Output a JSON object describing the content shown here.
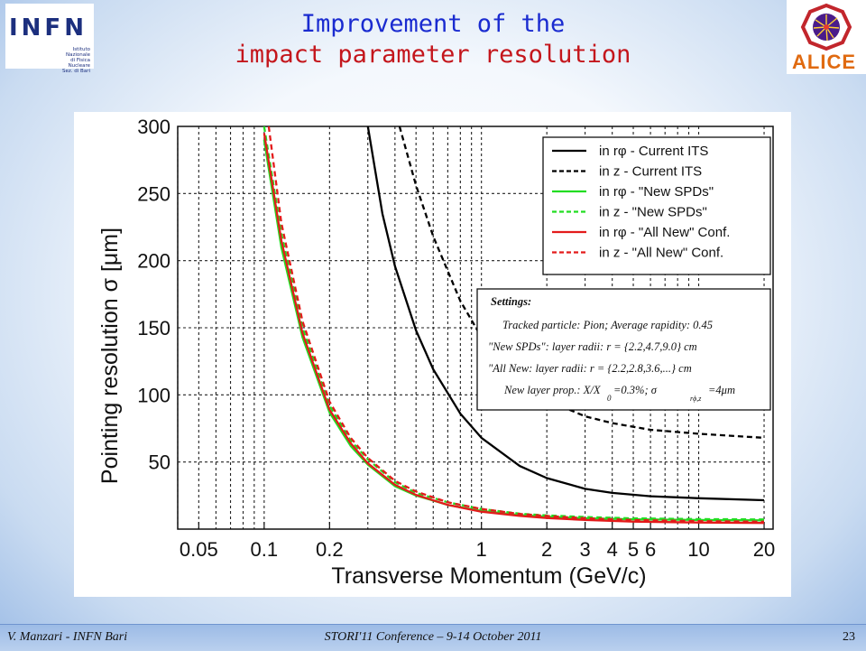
{
  "slide": {
    "title_line1": "Improvement of the",
    "title_line2": "impact parameter resolution",
    "infn_logo": {
      "letters": "INFN",
      "line1": "Istituto Nazionale",
      "line2": "di Fisica Nucleare",
      "line3": "Sez. di Bari"
    },
    "alice_logo": {
      "text": "ALICE"
    },
    "footer": {
      "left": "V. Manzari - INFN Bari",
      "center": "STORI'11 Conference – 9-14 October 2011",
      "page": "23"
    },
    "colors": {
      "title_blue": "#1a2bd0",
      "title_red": "#c4161c",
      "footer_bar": "#a9c5ea"
    }
  },
  "chart_data": {
    "type": "line",
    "xlabel": "Transverse Momentum (GeV/c)",
    "ylabel": "Pointing resolution σ [μm]",
    "x_scale": "log",
    "xlim": [
      0.04,
      22
    ],
    "ylim": [
      0,
      300
    ],
    "x_ticks": [
      {
        "v": 0.05,
        "label": "0.05"
      },
      {
        "v": 0.1,
        "label": "0.1"
      },
      {
        "v": 0.2,
        "label": "0.2"
      },
      {
        "v": 1,
        "label": "1"
      },
      {
        "v": 2,
        "label": "2"
      },
      {
        "v": 3,
        "label": "3"
      },
      {
        "v": 4,
        "label": "4"
      },
      {
        "v": 5,
        "label": "5"
      },
      {
        "v": 6,
        "label": "6"
      },
      {
        "v": 10,
        "label": "10"
      },
      {
        "v": 20,
        "label": "20"
      }
    ],
    "y_ticks": [
      50,
      100,
      150,
      200,
      250,
      300
    ],
    "grid": true,
    "legend_position": "top-right",
    "series": [
      {
        "name": "in rφ - Current ITS",
        "color": "#000000",
        "dash": "solid",
        "x": [
          0.3,
          0.35,
          0.4,
          0.5,
          0.6,
          0.8,
          1,
          1.5,
          2,
          3,
          4,
          6,
          10,
          20
        ],
        "y": [
          300,
          235,
          196,
          148,
          119,
          86,
          68,
          47,
          38,
          30,
          27,
          24.5,
          23,
          21.5
        ]
      },
      {
        "name": "in z  - Current ITS",
        "color": "#000000",
        "dash": "dashed",
        "x": [
          0.42,
          0.5,
          0.6,
          0.8,
          1,
          1.5,
          2,
          3,
          4,
          6,
          10,
          20
        ],
        "y": [
          300,
          256,
          218,
          170,
          143,
          110,
          96,
          84,
          79,
          74,
          71,
          68
        ]
      },
      {
        "name": "in rφ - \"New SPDs\"",
        "color": "#22dd22",
        "dash": "solid",
        "x": [
          0.1,
          0.12,
          0.15,
          0.2,
          0.25,
          0.3,
          0.4,
          0.5,
          0.7,
          1,
          1.5,
          2,
          3,
          5,
          10,
          20
        ],
        "y": [
          290,
          210,
          143,
          87,
          62,
          48,
          32,
          25,
          18,
          13.5,
          10.5,
          9.2,
          8.1,
          7.3,
          6.8,
          6.5
        ]
      },
      {
        "name": "in z  - \"New SPDs\"",
        "color": "#22dd22",
        "dash": "dashed",
        "x": [
          0.1,
          0.12,
          0.15,
          0.2,
          0.25,
          0.3,
          0.4,
          0.5,
          0.7,
          1,
          1.5,
          2,
          3,
          5,
          10,
          20
        ],
        "y": [
          300,
          220,
          150,
          92,
          66,
          52,
          35,
          27,
          20,
          15,
          11.5,
          10.2,
          9,
          8,
          7.5,
          7.2
        ]
      },
      {
        "name": "in rφ - \"All New\" Conf.",
        "color": "#e31b1b",
        "dash": "solid",
        "x": [
          0.1,
          0.12,
          0.15,
          0.2,
          0.25,
          0.3,
          0.4,
          0.5,
          0.7,
          1,
          1.5,
          2,
          3,
          5,
          10,
          20
        ],
        "y": [
          295,
          215,
          146,
          89,
          64,
          49,
          33,
          25.5,
          18,
          13,
          9.8,
          8.3,
          6.8,
          5.6,
          4.9,
          4.6
        ]
      },
      {
        "name": "in z  - \"All New\" Conf.",
        "color": "#e31b1b",
        "dash": "dashed",
        "x": [
          0.105,
          0.12,
          0.15,
          0.2,
          0.25,
          0.3,
          0.4,
          0.5,
          0.7,
          1,
          1.5,
          2,
          3,
          5,
          10,
          20
        ],
        "y": [
          300,
          228,
          155,
          95,
          68,
          53,
          36,
          28,
          20,
          15,
          11.3,
          9.8,
          8.1,
          6.7,
          5.9,
          5.5
        ]
      }
    ],
    "settings_box": {
      "heading": "Settings:",
      "lines": [
        "Tracked particle: Pion;   Average rapidity: 0.45",
        "\"New SPDs\": layer radii: r = {2.2,4.7,9.0} cm",
        "\"All New: layer radii: r = {2.2,2.8,3.6,...} cm",
        "New layer prop.: X/X",
        "=0.3%;  σ",
        "=4μm"
      ],
      "sub_zero": "0",
      "sub_rphiz": "rϕ,z"
    }
  }
}
